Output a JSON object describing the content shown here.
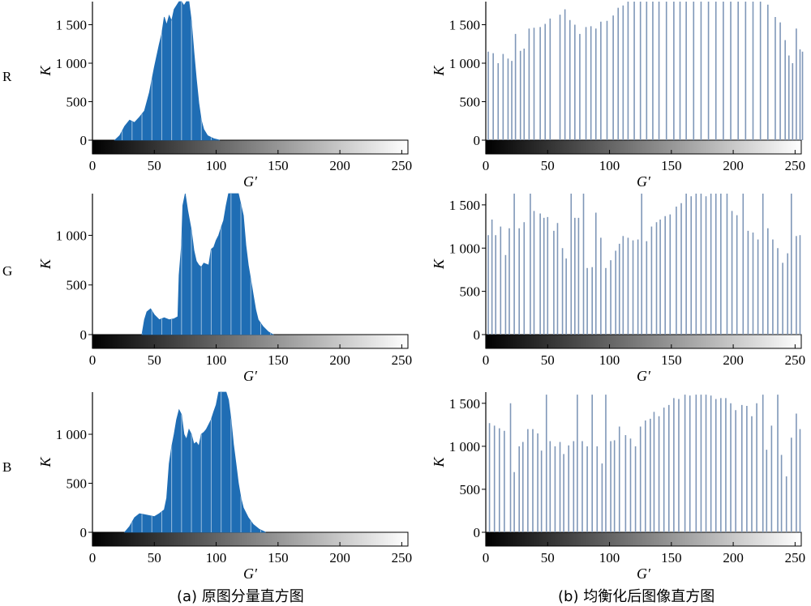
{
  "rows": [
    {
      "channel_label": "R"
    },
    {
      "channel_label": "G"
    },
    {
      "channel_label": "B"
    }
  ],
  "captions": {
    "left": "(a)  原图分量直方图",
    "right": "(b)  均衡化后图像直方图"
  },
  "colors": {
    "original_fill": "#1f6db4",
    "equalized_line": "#7f97b8",
    "axis": "#000000"
  },
  "chart_data": [
    {
      "type": "histogram",
      "row": "R",
      "column": "original",
      "xlabel": "G′",
      "ylabel": "K",
      "xlim": [
        0,
        255
      ],
      "ylim": [
        0,
        1800
      ],
      "xticks": [
        0,
        50,
        100,
        150,
        200,
        250
      ],
      "xtick_labels": [
        "0",
        "50",
        "100",
        "150",
        "200",
        "250"
      ],
      "yticks": [
        0,
        500,
        1000,
        1500
      ],
      "ytick_labels": [
        "0",
        "500",
        "1 000",
        "1 500"
      ],
      "profile": [
        [
          18,
          0
        ],
        [
          22,
          60
        ],
        [
          26,
          180
        ],
        [
          30,
          260
        ],
        [
          34,
          230
        ],
        [
          38,
          300
        ],
        [
          42,
          380
        ],
        [
          46,
          620
        ],
        [
          50,
          950
        ],
        [
          54,
          1250
        ],
        [
          56,
          1380
        ],
        [
          58,
          1600
        ],
        [
          60,
          1500
        ],
        [
          62,
          1620
        ],
        [
          64,
          1550
        ],
        [
          66,
          1700
        ],
        [
          68,
          1750
        ],
        [
          70,
          1800
        ],
        [
          72,
          1800
        ],
        [
          74,
          1750
        ],
        [
          76,
          1800
        ],
        [
          78,
          1800
        ],
        [
          80,
          1550
        ],
        [
          82,
          1150
        ],
        [
          84,
          800
        ],
        [
          86,
          480
        ],
        [
          88,
          260
        ],
        [
          90,
          140
        ],
        [
          93,
          60
        ],
        [
          98,
          20
        ],
        [
          103,
          0
        ]
      ]
    },
    {
      "type": "histogram",
      "row": "R",
      "column": "equalized",
      "xlabel": "G′",
      "ylabel": "K",
      "xlim": [
        0,
        255
      ],
      "ylim": [
        0,
        1800
      ],
      "xticks": [
        0,
        50,
        100,
        150,
        200,
        250
      ],
      "xtick_labels": [
        "0",
        "50",
        "100",
        "150",
        "200",
        "250"
      ],
      "yticks": [
        0,
        500,
        1000,
        1500
      ],
      "ytick_labels": [
        "0",
        "500",
        "1 000",
        "1 500"
      ],
      "bins": [
        [
          2,
          1150
        ],
        [
          6,
          1130
        ],
        [
          10,
          1000
        ],
        [
          14,
          1120
        ],
        [
          18,
          1060
        ],
        [
          21,
          1030
        ],
        [
          24,
          1380
        ],
        [
          28,
          1160
        ],
        [
          31,
          1190
        ],
        [
          35,
          1450
        ],
        [
          39,
          1460
        ],
        [
          44,
          1470
        ],
        [
          48,
          1510
        ],
        [
          52,
          1580
        ],
        [
          60,
          1630
        ],
        [
          64,
          1700
        ],
        [
          68,
          1560
        ],
        [
          72,
          1500
        ],
        [
          76,
          1380
        ],
        [
          81,
          1470
        ],
        [
          85,
          1480
        ],
        [
          89,
          1450
        ],
        [
          93,
          1540
        ],
        [
          98,
          1550
        ],
        [
          103,
          1620
        ],
        [
          107,
          1720
        ],
        [
          111,
          1750
        ],
        [
          115,
          1800
        ],
        [
          120,
          1800
        ],
        [
          125,
          1800
        ],
        [
          130,
          1800
        ],
        [
          135,
          1800
        ],
        [
          140,
          1800
        ],
        [
          146,
          1800
        ],
        [
          152,
          1800
        ],
        [
          157,
          1800
        ],
        [
          162,
          1800
        ],
        [
          168,
          1800
        ],
        [
          174,
          1800
        ],
        [
          180,
          1800
        ],
        [
          186,
          1800
        ],
        [
          192,
          1800
        ],
        [
          198,
          1800
        ],
        [
          204,
          1800
        ],
        [
          210,
          1800
        ],
        [
          216,
          1800
        ],
        [
          222,
          1800
        ],
        [
          228,
          1760
        ],
        [
          234,
          1600
        ],
        [
          238,
          1530
        ],
        [
          242,
          1300
        ],
        [
          245,
          1100
        ],
        [
          248,
          1000
        ],
        [
          251,
          1450
        ],
        [
          254,
          1180
        ],
        [
          256,
          1150
        ]
      ]
    },
    {
      "type": "histogram",
      "row": "G",
      "column": "original",
      "xlabel": "G′",
      "ylabel": "K",
      "xlim": [
        0,
        255
      ],
      "ylim": [
        0,
        1420
      ],
      "xticks": [
        0,
        50,
        100,
        150,
        200,
        250
      ],
      "xtick_labels": [
        "0",
        "50",
        "100",
        "150",
        "200",
        "250"
      ],
      "yticks": [
        0,
        500,
        1000
      ],
      "ytick_labels": [
        "0",
        "500",
        "1 000"
      ],
      "profile": [
        [
          40,
          0
        ],
        [
          42,
          150
        ],
        [
          44,
          230
        ],
        [
          47,
          260
        ],
        [
          50,
          200
        ],
        [
          54,
          150
        ],
        [
          58,
          170
        ],
        [
          62,
          150
        ],
        [
          66,
          160
        ],
        [
          69,
          180
        ],
        [
          70,
          600
        ],
        [
          72,
          900
        ],
        [
          73,
          1300
        ],
        [
          75,
          1420
        ],
        [
          77,
          1250
        ],
        [
          80,
          1050
        ],
        [
          82,
          850
        ],
        [
          84,
          740
        ],
        [
          86,
          700
        ],
        [
          88,
          680
        ],
        [
          90,
          720
        ],
        [
          94,
          700
        ],
        [
          96,
          860
        ],
        [
          98,
          880
        ],
        [
          100,
          950
        ],
        [
          102,
          1000
        ],
        [
          104,
          1080
        ],
        [
          106,
          1150
        ],
        [
          108,
          1300
        ],
        [
          110,
          1420
        ],
        [
          114,
          1420
        ],
        [
          118,
          1420
        ],
        [
          122,
          1200
        ],
        [
          124,
          900
        ],
        [
          126,
          700
        ],
        [
          128,
          550
        ],
        [
          130,
          400
        ],
        [
          132,
          250
        ],
        [
          134,
          150
        ],
        [
          138,
          80
        ],
        [
          142,
          30
        ],
        [
          146,
          0
        ]
      ]
    },
    {
      "type": "histogram",
      "row": "G",
      "column": "equalized",
      "xlabel": "G′",
      "ylabel": "K",
      "xlim": [
        0,
        255
      ],
      "ylim": [
        0,
        1630
      ],
      "xticks": [
        0,
        50,
        100,
        150,
        200,
        250
      ],
      "xtick_labels": [
        "0",
        "50",
        "100",
        "150",
        "200",
        "250"
      ],
      "yticks": [
        0,
        500,
        1000,
        1500
      ],
      "ytick_labels": [
        "0",
        "500",
        "1 000",
        "1 500"
      ],
      "bins": [
        [
          2,
          1150
        ],
        [
          5,
          1330
        ],
        [
          8,
          1150
        ],
        [
          12,
          1250
        ],
        [
          16,
          920
        ],
        [
          19,
          1230
        ],
        [
          23,
          1630
        ],
        [
          27,
          1230
        ],
        [
          31,
          1300
        ],
        [
          36,
          1630
        ],
        [
          39,
          1430
        ],
        [
          44,
          1400
        ],
        [
          47,
          1350
        ],
        [
          50,
          1360
        ],
        [
          55,
          1200
        ],
        [
          58,
          1290
        ],
        [
          62,
          1000
        ],
        [
          65,
          880
        ],
        [
          69,
          1630
        ],
        [
          72,
          1350
        ],
        [
          75,
          1350
        ],
        [
          79,
          1630
        ],
        [
          82,
          770
        ],
        [
          86,
          780
        ],
        [
          89,
          1410
        ],
        [
          93,
          1120
        ],
        [
          97,
          770
        ],
        [
          101,
          860
        ],
        [
          105,
          970
        ],
        [
          108,
          1050
        ],
        [
          111,
          1140
        ],
        [
          115,
          1120
        ],
        [
          119,
          1090
        ],
        [
          123,
          1100
        ],
        [
          126,
          1630
        ],
        [
          130,
          1080
        ],
        [
          134,
          1250
        ],
        [
          138,
          1300
        ],
        [
          141,
          1330
        ],
        [
          145,
          1370
        ],
        [
          149,
          1390
        ],
        [
          154,
          1480
        ],
        [
          158,
          1520
        ],
        [
          162,
          1630
        ],
        [
          166,
          1600
        ],
        [
          170,
          1630
        ],
        [
          174,
          1630
        ],
        [
          178,
          1600
        ],
        [
          182,
          1630
        ],
        [
          186,
          1630
        ],
        [
          190,
          1630
        ],
        [
          195,
          1630
        ],
        [
          199,
          1430
        ],
        [
          203,
          1380
        ],
        [
          208,
          1630
        ],
        [
          212,
          1200
        ],
        [
          216,
          1180
        ],
        [
          220,
          1100
        ],
        [
          224,
          1630
        ],
        [
          228,
          1230
        ],
        [
          232,
          1100
        ],
        [
          236,
          1000
        ],
        [
          240,
          830
        ],
        [
          244,
          940
        ],
        [
          247,
          1630
        ],
        [
          251,
          1140
        ],
        [
          254,
          1150
        ]
      ]
    },
    {
      "type": "histogram",
      "row": "B",
      "column": "original",
      "xlabel": "G′",
      "ylabel": "K",
      "xlim": [
        0,
        255
      ],
      "ylim": [
        0,
        1430
      ],
      "xticks": [
        0,
        50,
        100,
        150,
        200,
        250
      ],
      "xtick_labels": [
        "0",
        "50",
        "100",
        "150",
        "200",
        "250"
      ],
      "yticks": [
        0,
        500,
        1000
      ],
      "ytick_labels": [
        "0",
        "500",
        "1 000"
      ],
      "profile": [
        [
          26,
          0
        ],
        [
          30,
          60
        ],
        [
          34,
          150
        ],
        [
          38,
          190
        ],
        [
          42,
          180
        ],
        [
          46,
          170
        ],
        [
          50,
          160
        ],
        [
          54,
          190
        ],
        [
          58,
          230
        ],
        [
          60,
          350
        ],
        [
          62,
          700
        ],
        [
          64,
          870
        ],
        [
          66,
          1000
        ],
        [
          68,
          1150
        ],
        [
          70,
          1250
        ],
        [
          72,
          1200
        ],
        [
          74,
          1000
        ],
        [
          76,
          950
        ],
        [
          78,
          1050
        ],
        [
          80,
          1000
        ],
        [
          82,
          900
        ],
        [
          84,
          920
        ],
        [
          86,
          880
        ],
        [
          88,
          1000
        ],
        [
          90,
          1020
        ],
        [
          92,
          1050
        ],
        [
          94,
          1100
        ],
        [
          96,
          1150
        ],
        [
          98,
          1230
        ],
        [
          100,
          1300
        ],
        [
          102,
          1430
        ],
        [
          108,
          1430
        ],
        [
          110,
          1350
        ],
        [
          112,
          1150
        ],
        [
          114,
          900
        ],
        [
          116,
          700
        ],
        [
          118,
          500
        ],
        [
          120,
          350
        ],
        [
          122,
          250
        ],
        [
          126,
          150
        ],
        [
          130,
          80
        ],
        [
          135,
          30
        ],
        [
          140,
          0
        ]
      ]
    },
    {
      "type": "histogram",
      "row": "B",
      "column": "equalized",
      "xlabel": "G′",
      "ylabel": "K",
      "xlim": [
        0,
        255
      ],
      "ylim": [
        0,
        1630
      ],
      "xticks": [
        0,
        50,
        100,
        150,
        200,
        250
      ],
      "xtick_labels": [
        "0",
        "50",
        "100",
        "150",
        "200",
        "250"
      ],
      "yticks": [
        0,
        500,
        1000,
        1500
      ],
      "ytick_labels": [
        "0",
        "500",
        "1 000",
        "1 500"
      ],
      "bins": [
        [
          3,
          1270
        ],
        [
          7,
          1240
        ],
        [
          11,
          1210
        ],
        [
          15,
          1180
        ],
        [
          20,
          1500
        ],
        [
          23,
          700
        ],
        [
          27,
          1000
        ],
        [
          30,
          1050
        ],
        [
          34,
          1200
        ],
        [
          38,
          1200
        ],
        [
          42,
          1150
        ],
        [
          45,
          950
        ],
        [
          49,
          1600
        ],
        [
          52,
          1060
        ],
        [
          56,
          1000
        ],
        [
          60,
          1050
        ],
        [
          63,
          910
        ],
        [
          67,
          1010
        ],
        [
          71,
          1060
        ],
        [
          74,
          1600
        ],
        [
          78,
          1060
        ],
        [
          82,
          1000
        ],
        [
          86,
          1600
        ],
        [
          90,
          1000
        ],
        [
          94,
          800
        ],
        [
          97,
          1600
        ],
        [
          101,
          1060
        ],
        [
          104,
          1070
        ],
        [
          108,
          1230
        ],
        [
          113,
          1130
        ],
        [
          117,
          1090
        ],
        [
          121,
          1000
        ],
        [
          125,
          1230
        ],
        [
          129,
          1300
        ],
        [
          133,
          1320
        ],
        [
          136,
          1400
        ],
        [
          140,
          1350
        ],
        [
          144,
          1450
        ],
        [
          148,
          1480
        ],
        [
          152,
          1560
        ],
        [
          156,
          1550
        ],
        [
          161,
          1600
        ],
        [
          165,
          1590
        ],
        [
          170,
          1600
        ],
        [
          174,
          1600
        ],
        [
          178,
          1600
        ],
        [
          182,
          1590
        ],
        [
          186,
          1550
        ],
        [
          190,
          1560
        ],
        [
          194,
          1560
        ],
        [
          198,
          1500
        ],
        [
          202,
          1420
        ],
        [
          207,
          1480
        ],
        [
          211,
          1470
        ],
        [
          215,
          1350
        ],
        [
          219,
          1500
        ],
        [
          224,
          1600
        ],
        [
          227,
          960
        ],
        [
          231,
          1240
        ],
        [
          236,
          1600
        ],
        [
          239,
          900
        ],
        [
          243,
          650
        ],
        [
          247,
          1100
        ],
        [
          251,
          1380
        ],
        [
          254,
          1200
        ]
      ]
    }
  ]
}
